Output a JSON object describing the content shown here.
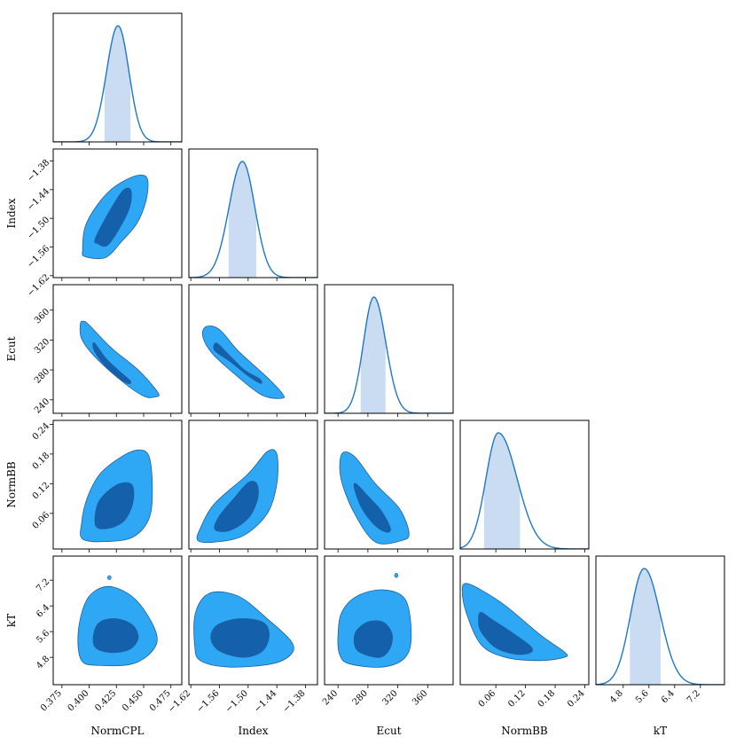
{
  "chart_data": {
    "type": "corner",
    "parameters": [
      "NormCPL",
      "Index",
      "Ecut",
      "NormBB",
      "kT"
    ],
    "ranges": {
      "NormCPL": [
        0.367,
        0.485
      ],
      "Index": [
        -1.624,
        -1.355
      ],
      "Ecut": [
        222,
        394
      ],
      "NormBB": [
        -0.012,
        0.248
      ],
      "kT": [
        3.95,
        7.95
      ]
    },
    "ticks": {
      "NormCPL": [
        {
          "v": 0.375,
          "label": "0.375"
        },
        {
          "v": 0.4,
          "label": "0.400"
        },
        {
          "v": 0.425,
          "label": "0.425"
        },
        {
          "v": 0.45,
          "label": "0.450"
        },
        {
          "v": 0.475,
          "label": "0.475"
        }
      ],
      "Index": [
        {
          "v": -1.62,
          "label": "−1.62"
        },
        {
          "v": -1.56,
          "label": "−1.56"
        },
        {
          "v": -1.5,
          "label": "−1.50"
        },
        {
          "v": -1.44,
          "label": "−1.44"
        },
        {
          "v": -1.38,
          "label": "−1.38"
        }
      ],
      "Ecut": [
        {
          "v": 240,
          "label": "240"
        },
        {
          "v": 280,
          "label": "280"
        },
        {
          "v": 320,
          "label": "320"
        },
        {
          "v": 360,
          "label": "360"
        }
      ],
      "NormBB": [
        {
          "v": 0.06,
          "label": "0.06"
        },
        {
          "v": 0.12,
          "label": "0.12"
        },
        {
          "v": 0.18,
          "label": "0.18"
        },
        {
          "v": 0.24,
          "label": "0.24"
        }
      ],
      "kT": [
        {
          "v": 4.8,
          "label": "4.8"
        },
        {
          "v": 5.6,
          "label": "5.6"
        },
        {
          "v": 6.4,
          "label": "6.4"
        },
        {
          "v": 7.2,
          "label": "7.2"
        }
      ]
    },
    "marginals": [
      {
        "param": "NormCPL",
        "mode": 0.4265,
        "sigma_left": 0.0105,
        "sigma_right": 0.01,
        "interval": [
          0.4145,
          0.4375
        ]
      },
      {
        "param": "Index",
        "mode": -1.512,
        "sigma_left": 0.028,
        "sigma_right": 0.026,
        "interval": [
          -1.54,
          -1.484
        ]
      },
      {
        "param": "Ecut",
        "mode": 288,
        "sigma_left": 14,
        "sigma_right": 16,
        "interval": [
          271,
          303
        ]
      },
      {
        "param": "NormBB",
        "mode": 0.065,
        "sigma_left": 0.025,
        "sigma_right": 0.038,
        "interval": [
          0.037,
          0.108
        ]
      },
      {
        "param": "kT",
        "mode": 5.45,
        "sigma_left": 0.42,
        "sigma_right": 0.5,
        "interval": [
          5.02,
          5.95
        ]
      }
    ],
    "joint": [
      {
        "x": "NormCPL",
        "y": "Index",
        "inner": [
          [
            0.407,
            -1.552
          ],
          [
            0.417,
            -1.556
          ],
          [
            0.431,
            -1.508
          ],
          [
            0.438,
            -1.47
          ],
          [
            0.438,
            -1.44
          ],
          [
            0.431,
            -1.442
          ],
          [
            0.42,
            -1.48
          ],
          [
            0.408,
            -1.53
          ],
          [
            0.405,
            -1.548
          ]
        ],
        "outer": [
          [
            0.396,
            -1.58
          ],
          [
            0.415,
            -1.582
          ],
          [
            0.43,
            -1.548
          ],
          [
            0.444,
            -1.51
          ],
          [
            0.452,
            -1.465
          ],
          [
            0.454,
            -1.425
          ],
          [
            0.45,
            -1.41
          ],
          [
            0.438,
            -1.415
          ],
          [
            0.42,
            -1.44
          ],
          [
            0.405,
            -1.48
          ],
          [
            0.396,
            -1.52
          ],
          [
            0.394,
            -1.565
          ]
        ]
      },
      {
        "x": "NormCPL",
        "y": "Ecut",
        "inner": [
          [
            0.405,
            316
          ],
          [
            0.415,
            296
          ],
          [
            0.428,
            278
          ],
          [
            0.438,
            265
          ],
          [
            0.435,
            262
          ],
          [
            0.425,
            272
          ],
          [
            0.412,
            290
          ],
          [
            0.404,
            308
          ]
        ],
        "outer": [
          [
            0.395,
            345
          ],
          [
            0.4,
            340
          ],
          [
            0.42,
            310
          ],
          [
            0.445,
            280
          ],
          [
            0.463,
            250
          ],
          [
            0.461,
            244
          ],
          [
            0.45,
            245
          ],
          [
            0.43,
            265
          ],
          [
            0.405,
            298
          ],
          [
            0.393,
            322
          ],
          [
            0.392,
            342
          ]
        ]
      },
      {
        "x": "NormCPL",
        "y": "NormBB",
        "inner": [
          [
            0.406,
            0.035
          ],
          [
            0.418,
            0.03
          ],
          [
            0.432,
            0.045
          ],
          [
            0.44,
            0.08
          ],
          [
            0.44,
            0.115
          ],
          [
            0.432,
            0.122
          ],
          [
            0.42,
            0.11
          ],
          [
            0.408,
            0.08
          ]
        ],
        "outer": [
          [
            0.394,
            0.008
          ],
          [
            0.415,
            0.003
          ],
          [
            0.44,
            0.012
          ],
          [
            0.455,
            0.05
          ],
          [
            0.458,
            0.11
          ],
          [
            0.455,
            0.175
          ],
          [
            0.445,
            0.188
          ],
          [
            0.43,
            0.175
          ],
          [
            0.41,
            0.14
          ],
          [
            0.398,
            0.09
          ],
          [
            0.393,
            0.04
          ]
        ]
      },
      {
        "x": "NormCPL",
        "y": "kT",
        "inner": [
          [
            0.406,
            5.1
          ],
          [
            0.42,
            4.95
          ],
          [
            0.437,
            5.05
          ],
          [
            0.445,
            5.4
          ],
          [
            0.44,
            5.8
          ],
          [
            0.425,
            6.0
          ],
          [
            0.41,
            5.9
          ],
          [
            0.404,
            5.5
          ]
        ],
        "outer": [
          [
            0.393,
            4.7
          ],
          [
            0.41,
            4.55
          ],
          [
            0.44,
            4.6
          ],
          [
            0.458,
            5.0
          ],
          [
            0.462,
            5.5
          ],
          [
            0.45,
            6.3
          ],
          [
            0.435,
            6.8
          ],
          [
            0.415,
            7.0
          ],
          [
            0.398,
            6.6
          ],
          [
            0.39,
            5.6
          ]
        ]
      },
      {
        "x": "Index",
        "y": "Ecut",
        "inner": [
          [
            -1.566,
            316
          ],
          [
            -1.54,
            300
          ],
          [
            -1.508,
            280
          ],
          [
            -1.476,
            268
          ],
          [
            -1.474,
            262
          ],
          [
            -1.5,
            272
          ],
          [
            -1.535,
            290
          ],
          [
            -1.57,
            306
          ]
        ],
        "outer": [
          [
            -1.588,
            338
          ],
          [
            -1.56,
            334
          ],
          [
            -1.52,
            305
          ],
          [
            -1.46,
            270
          ],
          [
            -1.428,
            248
          ],
          [
            -1.43,
            242
          ],
          [
            -1.47,
            246
          ],
          [
            -1.52,
            270
          ],
          [
            -1.575,
            302
          ],
          [
            -1.595,
            325
          ]
        ]
      },
      {
        "x": "Index",
        "y": "NormBB",
        "inner": [
          [
            -1.57,
            0.028
          ],
          [
            -1.54,
            0.025
          ],
          [
            -1.5,
            0.05
          ],
          [
            -1.48,
            0.09
          ],
          [
            -1.482,
            0.12
          ],
          [
            -1.5,
            0.122
          ],
          [
            -1.53,
            0.09
          ],
          [
            -1.56,
            0.055
          ]
        ],
        "outer": [
          [
            -1.605,
            0.005
          ],
          [
            -1.57,
            0.002
          ],
          [
            -1.51,
            0.015
          ],
          [
            -1.46,
            0.06
          ],
          [
            -1.44,
            0.12
          ],
          [
            -1.44,
            0.18
          ],
          [
            -1.46,
            0.185
          ],
          [
            -1.5,
            0.14
          ],
          [
            -1.57,
            0.08
          ],
          [
            -1.6,
            0.03
          ]
        ]
      },
      {
        "x": "Index",
        "y": "kT",
        "inner": [
          [
            -1.56,
            5.0
          ],
          [
            -1.51,
            4.8
          ],
          [
            -1.47,
            5.0
          ],
          [
            -1.456,
            5.5
          ],
          [
            -1.47,
            5.9
          ],
          [
            -1.52,
            6.0
          ],
          [
            -1.565,
            5.8
          ],
          [
            -1.578,
            5.4
          ]
        ],
        "outer": [
          [
            -1.6,
            4.7
          ],
          [
            -1.54,
            4.5
          ],
          [
            -1.45,
            4.6
          ],
          [
            -1.41,
            4.9
          ],
          [
            -1.41,
            5.3
          ],
          [
            -1.46,
            6.0
          ],
          [
            -1.52,
            6.7
          ],
          [
            -1.58,
            6.8
          ],
          [
            -1.61,
            6.2
          ],
          [
            -1.612,
            5.2
          ]
        ]
      },
      {
        "x": "Ecut",
        "y": "NormBB",
        "inner": [
          [
            264,
            0.12
          ],
          [
            280,
            0.095
          ],
          [
            298,
            0.065
          ],
          [
            310,
            0.03
          ],
          [
            305,
            0.022
          ],
          [
            290,
            0.035
          ],
          [
            272,
            0.07
          ],
          [
            262,
            0.11
          ]
        ],
        "outer": [
          [
            245,
            0.18
          ],
          [
            262,
            0.175
          ],
          [
            290,
            0.12
          ],
          [
            322,
            0.07
          ],
          [
            335,
            0.02
          ],
          [
            325,
            0.005
          ],
          [
            290,
            0.002
          ],
          [
            262,
            0.06
          ],
          [
            244,
            0.13
          ]
        ]
      },
      {
        "x": "Ecut",
        "y": "kT",
        "inner": [
          [
            262,
            5.2
          ],
          [
            270,
            4.95
          ],
          [
            296,
            4.8
          ],
          [
            310,
            5.1
          ],
          [
            312,
            5.55
          ],
          [
            300,
            5.9
          ],
          [
            280,
            5.9
          ],
          [
            264,
            5.6
          ]
        ],
        "outer": [
          [
            242,
            4.9
          ],
          [
            255,
            4.6
          ],
          [
            300,
            4.5
          ],
          [
            330,
            4.8
          ],
          [
            338,
            5.5
          ],
          [
            330,
            6.6
          ],
          [
            300,
            6.9
          ],
          [
            265,
            6.7
          ],
          [
            245,
            6.2
          ],
          [
            240,
            5.5
          ]
        ]
      },
      {
        "x": "NormBB",
        "y": "kT",
        "inner": [
          [
            0.03,
            6.2
          ],
          [
            0.05,
            6.0
          ],
          [
            0.09,
            5.6
          ],
          [
            0.13,
            5.15
          ],
          [
            0.13,
            4.95
          ],
          [
            0.1,
            4.9
          ],
          [
            0.06,
            5.1
          ],
          [
            0.03,
            5.6
          ],
          [
            0.025,
            6.0
          ]
        ],
        "outer": [
          [
            0.0,
            7.1
          ],
          [
            0.03,
            6.9
          ],
          [
            0.08,
            6.4
          ],
          [
            0.15,
            5.5
          ],
          [
            0.2,
            4.95
          ],
          [
            0.198,
            4.8
          ],
          [
            0.15,
            4.7
          ],
          [
            0.08,
            4.8
          ],
          [
            0.03,
            5.2
          ],
          [
            0.0,
            6.2
          ],
          [
            -0.008,
            6.9
          ]
        ]
      }
    ],
    "extra_points": [
      {
        "x": "NormCPL",
        "y": "kT",
        "xv": 0.4185,
        "yv": 7.28
      },
      {
        "x": "Ecut",
        "y": "kT",
        "xv": 318,
        "yv": 7.35
      }
    ],
    "colors": {
      "outer_fill": "#2ea8f5",
      "inner_fill": "#1460aa",
      "contour_stroke": "#1f5f9f",
      "marginal_line": "#1f77c8",
      "marginal_fill": "#c9dcf2"
    },
    "grid": false,
    "legend": "none"
  }
}
